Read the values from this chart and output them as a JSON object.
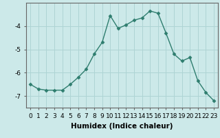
{
  "x": [
    0,
    1,
    2,
    3,
    4,
    5,
    6,
    7,
    8,
    9,
    10,
    11,
    12,
    13,
    14,
    15,
    16,
    17,
    18,
    19,
    20,
    21,
    22,
    23
  ],
  "y": [
    -6.5,
    -6.7,
    -6.75,
    -6.75,
    -6.75,
    -6.5,
    -6.2,
    -5.85,
    -5.2,
    -4.7,
    -3.55,
    -4.1,
    -3.95,
    -3.75,
    -3.65,
    -3.35,
    -3.45,
    -4.3,
    -5.2,
    -5.5,
    -5.35,
    -6.35,
    -6.85,
    -7.2
  ],
  "line_color": "#2e7d6e",
  "marker": "D",
  "marker_size": 2.5,
  "bg_color": "#cce9e9",
  "grid_color": "#aed4d4",
  "xlabel": "Humidex (Indice chaleur)",
  "ylim": [
    -7.5,
    -3.0
  ],
  "xlim": [
    -0.5,
    23.5
  ],
  "yticks": [
    -7,
    -6,
    -5,
    -4
  ],
  "xticks": [
    0,
    1,
    2,
    3,
    4,
    5,
    6,
    7,
    8,
    9,
    10,
    11,
    12,
    13,
    14,
    15,
    16,
    17,
    18,
    19,
    20,
    21,
    22,
    23
  ],
  "xlabel_fontsize": 7.5,
  "tick_fontsize": 6.5
}
